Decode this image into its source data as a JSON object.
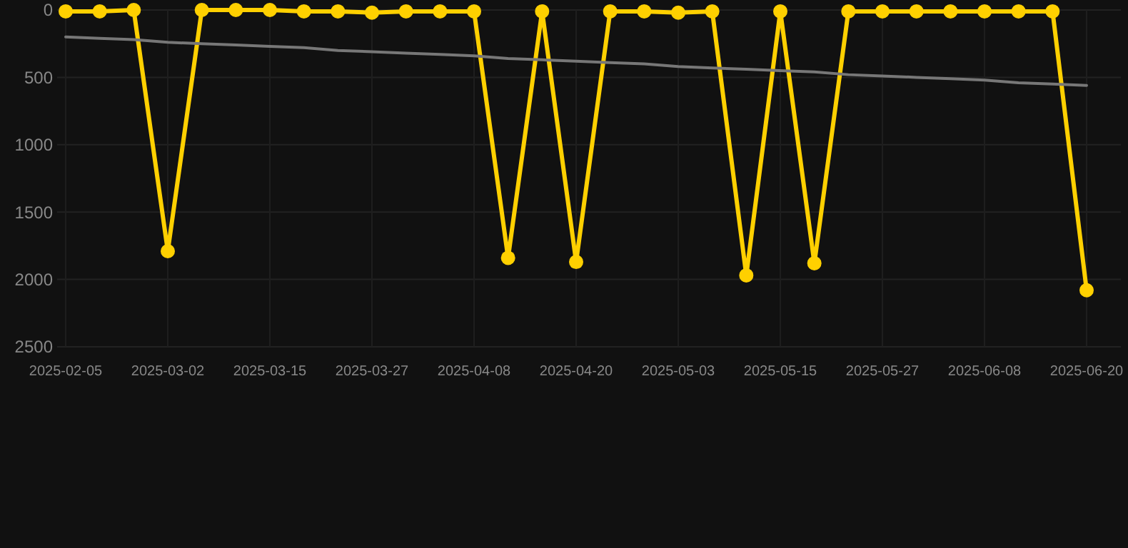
{
  "chart_data": {
    "type": "line",
    "categories": [
      "2025-02-05",
      null,
      null,
      "2025-03-02",
      null,
      null,
      "2025-03-15",
      null,
      null,
      "2025-03-27",
      null,
      null,
      "2025-04-08",
      null,
      null,
      "2025-04-20",
      null,
      null,
      "2025-05-03",
      null,
      null,
      "2025-05-15",
      null,
      null,
      "2025-05-27",
      null,
      null,
      "2025-06-08",
      null,
      null,
      "2025-06-20"
    ],
    "series": [
      {
        "color": "#ffd000",
        "marker": "circle",
        "values": [
          10,
          10,
          0,
          1790,
          0,
          0,
          0,
          10,
          10,
          20,
          10,
          10,
          10,
          1840,
          10,
          1870,
          10,
          10,
          20,
          10,
          1970,
          10,
          1880,
          10,
          10,
          10,
          10,
          10,
          10,
          10,
          2080
        ]
      },
      {
        "type": "line",
        "color": "#777777",
        "marker": "none",
        "values": [
          200,
          210,
          220,
          240,
          250,
          260,
          270,
          280,
          300,
          310,
          320,
          330,
          340,
          360,
          370,
          380,
          390,
          400,
          420,
          430,
          440,
          450,
          460,
          480,
          490,
          500,
          510,
          520,
          540,
          550,
          560
        ]
      }
    ],
    "ylim": [
      2500,
      0
    ],
    "yticks": [
      0,
      500,
      1000,
      1500,
      2000,
      2500
    ],
    "grid": true
  }
}
